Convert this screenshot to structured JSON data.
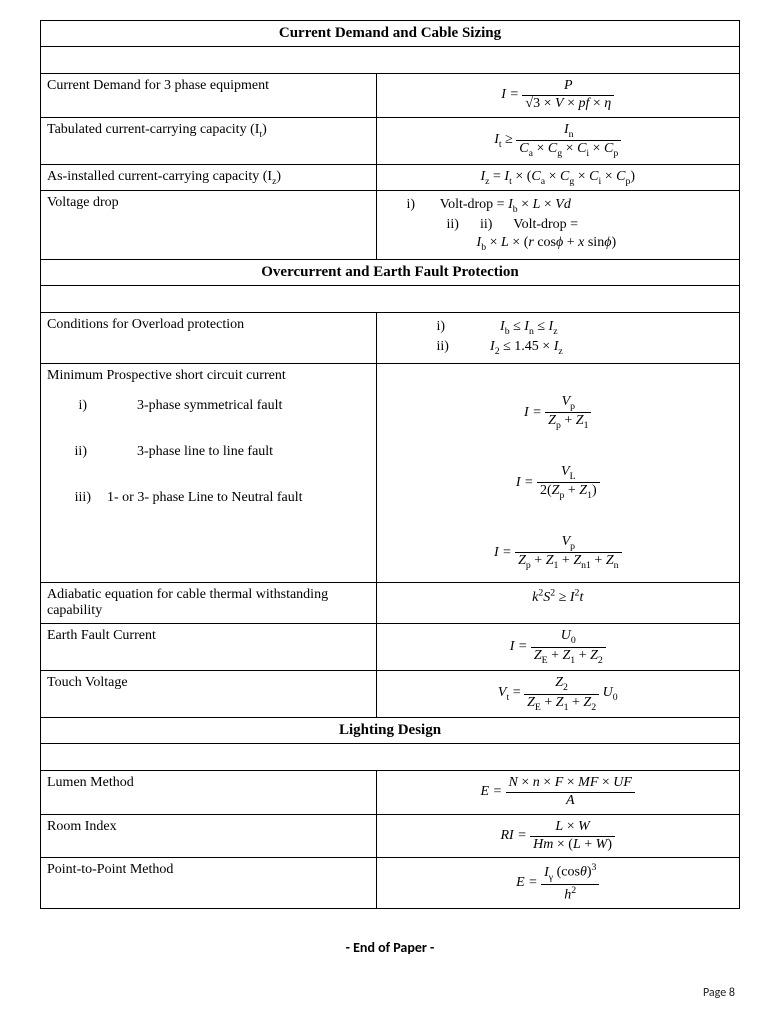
{
  "sections": {
    "s1": {
      "title": "Current Demand and Cable Sizing"
    },
    "s2": {
      "title": "Overcurrent and Earth Fault Protection"
    },
    "s3": {
      "title": "Lighting Design"
    }
  },
  "rows": {
    "r1": {
      "label": "Current Demand for 3 phase equipment"
    },
    "r2": {
      "label_html": "Tabulated current-carrying capacity (I<sub>t</sub>)"
    },
    "r3": {
      "label_html": "As-installed current-carrying capacity (I<sub>z</sub>)"
    },
    "r4": {
      "label": "Voltage drop"
    },
    "r5": {
      "label": "Conditions for Overload protection"
    },
    "r6": {
      "label": "Minimum Prospective short circuit current",
      "i": "3-phase symmetrical fault",
      "ii": "3-phase line to line fault",
      "iii": "1- or 3- phase Line to Neutral fault"
    },
    "r7": {
      "label": "Adiabatic equation for cable thermal withstanding capability"
    },
    "r8": {
      "label": "Earth Fault Current"
    },
    "r9": {
      "label": "Touch Voltage"
    },
    "r10": {
      "label": "Lumen Method"
    },
    "r11": {
      "label": "Room Index"
    },
    "r12": {
      "label": "Point-to-Point Method"
    }
  },
  "formulas": {
    "f1": {
      "lhs": "I =",
      "num": "P",
      "den_html": "√3 × <span class='it'>V</span> × <span class='it'>pf</span> × <span class='it'>η</span>"
    },
    "f2": {
      "lhs_html": "<span class='it'>I<sub>t</sub></span> ≥",
      "num_html": "<span class='it'>I<sub>n</sub></span>",
      "den_html": "<span class='it'>C<sub>a</sub></span> × <span class='it'>C<sub>g</sub></span> × <span class='it'>C<sub>i</sub></span> × <span class='it'>C<sub>p</sub></span>"
    },
    "f3": {
      "inline_html": "<span class='it'>I<sub>z</sub></span> = <span class='it'>I<sub>t</sub></span> × (<span class='it'>C<sub>a</sub></span> × <span class='it'>C<sub>g</sub></span> × <span class='it'>C<sub>i</sub></span> × <span class='it'>C<sub>p</sub></span>)"
    },
    "f4a": {
      "prefix": "i)",
      "inline_html": "Volt-drop = <span class='it'>I<sub>b</sub></span> × <span class='it'>L</span> × <span class='it'>Vd</span>"
    },
    "f4b": {
      "prefix": "ii)",
      "prefix2": "ii)",
      "top": "Volt-drop =",
      "inline_html": "<span class='it'>I<sub>b</sub></span> × <span class='it'>L</span> × (<span class='it'>r</span> cos<span class='it'>ϕ</span> + <span class='it'>x</span> sin<span class='it'>ϕ</span>)"
    },
    "f5a": {
      "prefix": "i)",
      "inline_html": "<span class='it'>I<sub>b</sub></span> ≤ <span class='it'>I<sub>n</sub></span> ≤ <span class='it'>I<sub>z</sub></span>"
    },
    "f5b": {
      "prefix": "ii)",
      "inline_html": "<span class='it'>I</span><sub>2</sub> ≤ 1.45 × <span class='it'>I<sub>z</sub></span>"
    },
    "f6a": {
      "lhs": "I =",
      "num_html": "<span class='it'>V<sub>p</sub></span>",
      "den_html": "<span class='it'>Z<sub>p</sub></span> + <span class='it'>Z</span><sub>1</sub>"
    },
    "f6b": {
      "lhs": "I =",
      "num_html": "<span class='it'>V<sub>L</sub></span>",
      "den_html": "2(<span class='it'>Z<sub>p</sub></span> + <span class='it'>Z</span><sub>1</sub>)"
    },
    "f6c": {
      "lhs": "I =",
      "num_html": "<span class='it'>V<sub>p</sub></span>",
      "den_html": "<span class='it'>Z<sub>p</sub></span> + <span class='it'>Z</span><sub>1</sub> + <span class='it'>Z<sub>n1</sub></span> + <span class='it'>Z<sub>n</sub></span>"
    },
    "f7": {
      "inline_html": "<span class='it'>k</span><sup>2</sup><span class='it'>S</span><sup>2</sup> ≥ <span class='it'>I</span><sup>2</sup><span class='it'>t</span>"
    },
    "f8": {
      "lhs": "I =",
      "num_html": "<span class='it'>U</span><sub>0</sub>",
      "den_html": "<span class='it'>Z<sub>E</sub></span> + <span class='it'>Z</span><sub>1</sub> + <span class='it'>Z</span><sub>2</sub>"
    },
    "f9": {
      "lhs_html": "<span class='it'>V<sub>t</sub></span> =",
      "num_html": "<span class='it'>Z</span><sub>2</sub>",
      "den_html": "<span class='it'>Z<sub>E</sub></span> + <span class='it'>Z</span><sub>1</sub> + <span class='it'>Z</span><sub>2</sub>",
      "tail_html": "<span class='it'>U</span><sub>0</sub>"
    },
    "f10": {
      "lhs": "E =",
      "num_html": "<span class='it'>N</span> × <span class='it'>n</span> × <span class='it'>F</span> × <span class='it'>MF</span> × <span class='it'>UF</span>",
      "den_html": "<span class='it'>A</span>"
    },
    "f11": {
      "lhs": "RI =",
      "num_html": "<span class='it'>L</span> × <span class='it'>W</span>",
      "den_html": "<span class='it'>Hm</span> × (<span class='it'>L</span> + <span class='it'>W</span>)"
    },
    "f12": {
      "lhs": "E =",
      "num_html": "<span class='it'>I<sub>γ</sub></span> (cos<span class='it'>θ</span>)<sup>3</sup>",
      "den_html": "<span class='it'>h</span><sup>2</sup>"
    }
  },
  "footer": {
    "end": "- End of Paper -",
    "page": "Page  8"
  }
}
